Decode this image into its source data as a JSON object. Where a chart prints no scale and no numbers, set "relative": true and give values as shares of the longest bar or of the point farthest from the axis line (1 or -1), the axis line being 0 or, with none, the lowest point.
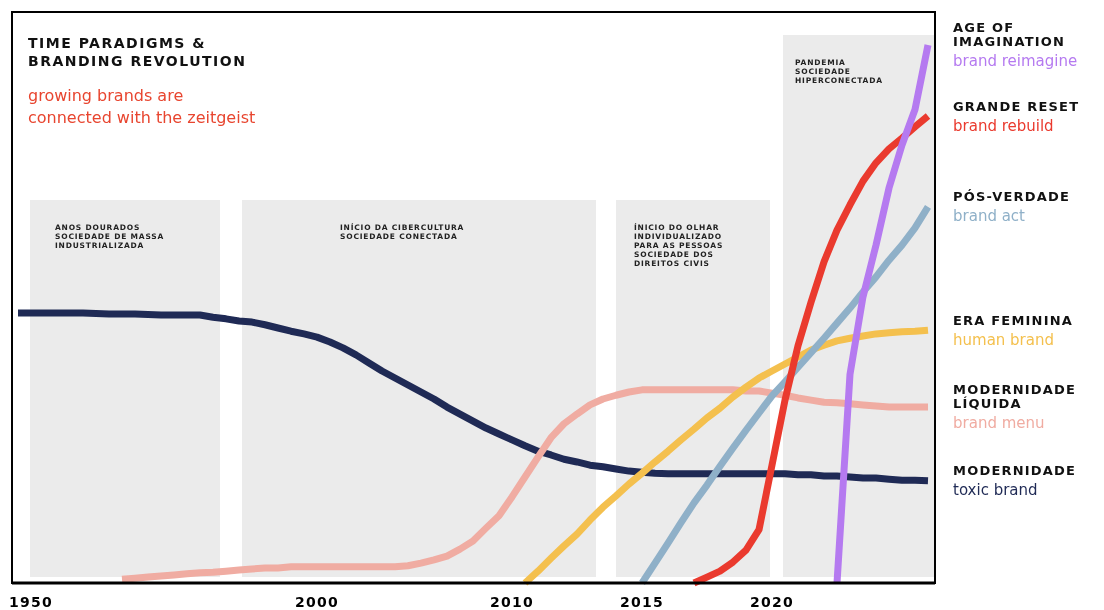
{
  "chart_data": {
    "type": "line",
    "title": "TIME PARADIGMS &\nBRANDING REVOLUTION",
    "subtitle": "growing brands are\nconnected with the zeitgeist",
    "relative": true,
    "categories": [
      null,
      "1950",
      null,
      null,
      null,
      null,
      null,
      null,
      null,
      null,
      null,
      null,
      null,
      null,
      null,
      null,
      null,
      null,
      null,
      null,
      null,
      null,
      null,
      "2000",
      null,
      null,
      null,
      null,
      null,
      null,
      null,
      null,
      null,
      null,
      null,
      null,
      null,
      null,
      "2010",
      null,
      null,
      null,
      null,
      null,
      null,
      null,
      null,
      null,
      "2015",
      null,
      null,
      null,
      null,
      null,
      null,
      null,
      null,
      null,
      "2020",
      null,
      null,
      null,
      null,
      null,
      null,
      null,
      null,
      null,
      null,
      null,
      null
    ],
    "series": [
      {
        "name": "toxic brand",
        "color": "#1f2a55",
        "values": [
          0.502,
          0.502,
          0.502,
          0.502,
          0.502,
          0.502,
          0.501,
          0.5,
          0.5,
          0.5,
          0.499,
          0.498,
          0.498,
          0.498,
          0.498,
          0.494,
          0.491,
          0.487,
          0.485,
          0.48,
          0.474,
          0.468,
          0.463,
          0.457,
          0.448,
          0.437,
          0.424,
          0.409,
          0.394,
          0.381,
          0.368,
          0.355,
          0.342,
          0.327,
          0.314,
          0.301,
          0.288,
          0.277,
          0.266,
          0.255,
          0.245,
          0.238,
          0.23,
          0.225,
          0.219,
          0.216,
          0.212,
          0.208,
          0.206,
          0.204,
          0.203,
          0.203,
          0.203,
          0.203,
          0.203,
          0.203,
          0.203,
          0.203,
          0.203,
          0.203,
          0.201,
          0.201,
          0.199,
          0.199,
          0.197,
          0.195,
          0.195,
          0.193,
          0.191,
          0.191,
          0.19
        ]
      },
      {
        "name": "brand menu",
        "color": "#f0aca2",
        "values": [
          null,
          null,
          null,
          null,
          null,
          null,
          null,
          null,
          0.007,
          0.009,
          0.011,
          0.013,
          0.015,
          0.017,
          0.019,
          0.02,
          0.022,
          0.024,
          0.026,
          0.028,
          0.028,
          0.03,
          0.03,
          0.03,
          0.03,
          0.03,
          0.03,
          0.03,
          0.03,
          0.03,
          0.032,
          0.037,
          0.043,
          0.05,
          0.063,
          0.078,
          0.102,
          0.125,
          0.16,
          0.197,
          0.234,
          0.27,
          0.296,
          0.314,
          0.331,
          0.342,
          0.349,
          0.355,
          0.359,
          0.359,
          0.359,
          0.359,
          0.359,
          0.359,
          0.359,
          0.359,
          0.357,
          0.357,
          0.353,
          0.349,
          0.344,
          0.34,
          0.336,
          0.335,
          0.333,
          0.331,
          0.329,
          0.327,
          0.327,
          0.327,
          0.327
        ]
      },
      {
        "name": "human brand",
        "color": "#f4c04e",
        "values": [
          null,
          null,
          null,
          null,
          null,
          null,
          null,
          null,
          null,
          null,
          null,
          null,
          null,
          null,
          null,
          null,
          null,
          null,
          null,
          null,
          null,
          null,
          null,
          null,
          null,
          null,
          null,
          null,
          null,
          null,
          null,
          null,
          null,
          null,
          null,
          null,
          null,
          null,
          null,
          0,
          0.022,
          0.046,
          0.069,
          0.091,
          0.117,
          0.141,
          0.162,
          0.184,
          0.204,
          0.225,
          0.245,
          0.266,
          0.286,
          0.307,
          0.325,
          0.346,
          0.364,
          0.381,
          0.394,
          0.407,
          0.42,
          0.433,
          0.442,
          0.45,
          0.455,
          0.459,
          0.463,
          0.465,
          0.467,
          0.468,
          0.47
        ]
      },
      {
        "name": "brand act",
        "color": "#8fb0c8",
        "values": [
          null,
          null,
          null,
          null,
          null,
          null,
          null,
          null,
          null,
          null,
          null,
          null,
          null,
          null,
          null,
          null,
          null,
          null,
          null,
          null,
          null,
          null,
          null,
          null,
          null,
          null,
          null,
          null,
          null,
          null,
          null,
          null,
          null,
          null,
          null,
          null,
          null,
          null,
          null,
          null,
          null,
          null,
          null,
          null,
          null,
          null,
          null,
          null,
          0,
          0.037,
          0.074,
          0.112,
          0.149,
          0.182,
          0.217,
          0.251,
          0.284,
          0.316,
          0.348,
          0.374,
          0.401,
          0.428,
          0.455,
          0.483,
          0.511,
          0.541,
          0.569,
          0.6,
          0.628,
          0.66,
          0.699
        ]
      },
      {
        "name": "brand rebuild",
        "color": "#ea3a2e",
        "values": [
          null,
          null,
          null,
          null,
          null,
          null,
          null,
          null,
          null,
          null,
          null,
          null,
          null,
          null,
          null,
          null,
          null,
          null,
          null,
          null,
          null,
          null,
          null,
          null,
          null,
          null,
          null,
          null,
          null,
          null,
          null,
          null,
          null,
          null,
          null,
          null,
          null,
          null,
          null,
          null,
          null,
          null,
          null,
          null,
          null,
          null,
          null,
          null,
          null,
          null,
          null,
          null,
          0,
          0.011,
          0.022,
          0.039,
          0.061,
          0.099,
          0.219,
          0.34,
          0.441,
          0.522,
          0.597,
          0.656,
          0.703,
          0.747,
          0.781,
          0.807,
          0.827,
          0.848,
          0.868
        ]
      },
      {
        "name": "brand reimagine",
        "color": "#b57af0",
        "values": [
          null,
          null,
          null,
          null,
          null,
          null,
          null,
          null,
          null,
          null,
          null,
          null,
          null,
          null,
          null,
          null,
          null,
          null,
          null,
          null,
          null,
          null,
          null,
          null,
          null,
          null,
          null,
          null,
          null,
          null,
          null,
          null,
          null,
          null,
          null,
          null,
          null,
          null,
          null,
          null,
          null,
          null,
          null,
          null,
          null,
          null,
          null,
          null,
          null,
          null,
          null,
          null,
          null,
          null,
          null,
          null,
          null,
          null,
          null,
          null,
          null,
          null,
          null,
          0,
          0.388,
          0.532,
          0.628,
          0.734,
          0.814,
          0.88,
          1
        ]
      }
    ],
    "annotations": [
      "ANOS DOURADOS\n\nSOCIEDADE DE MASSA\nINDUSTRIALIZADA",
      "INÍCIO DA CIBERCULTURA\n\nSOCIEDADE CONECTADA",
      "ÍNICIO DO OLHAR\nINDIVIDUALIZADO\nPARA AS PESSOAS\n\nSOCIEDADE DOS\nDIREITOS CIVIS",
      "PANDEMIA\n\nSOCIEDADE\nHIPERCONECTADA",
      "MODERNIDADE",
      "MODERNIDADE\nLÍQUIDA",
      "ERA FEMININA",
      "PÓS-VERDADE",
      "GRANDE RESET",
      "AGE OF\nIMAGINATION"
    ]
  }
}
